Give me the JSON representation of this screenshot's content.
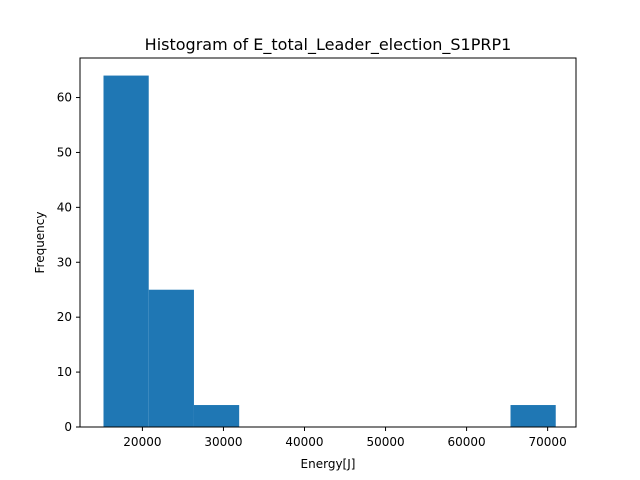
{
  "chart_data": {
    "type": "bar",
    "title": "Histogram of E_total_Leader_election_S1PRP1",
    "xlabel": "Energy[J]",
    "ylabel": "Frequency",
    "xlim": [
      12300,
      73500
    ],
    "ylim": [
      0,
      67.2
    ],
    "xticks": [
      20000,
      30000,
      40000,
      50000,
      60000,
      70000
    ],
    "yticks": [
      0,
      10,
      20,
      30,
      40,
      50,
      60
    ],
    "bins": [
      15200,
      20780,
      26360,
      31940,
      37520,
      43100,
      48680,
      54260,
      59840,
      65420,
      71000
    ],
    "counts": [
      64,
      25,
      4,
      0,
      0,
      0,
      0,
      0,
      0,
      4
    ],
    "bar_color": "#1f77b4",
    "grid": false,
    "legend": false
  }
}
